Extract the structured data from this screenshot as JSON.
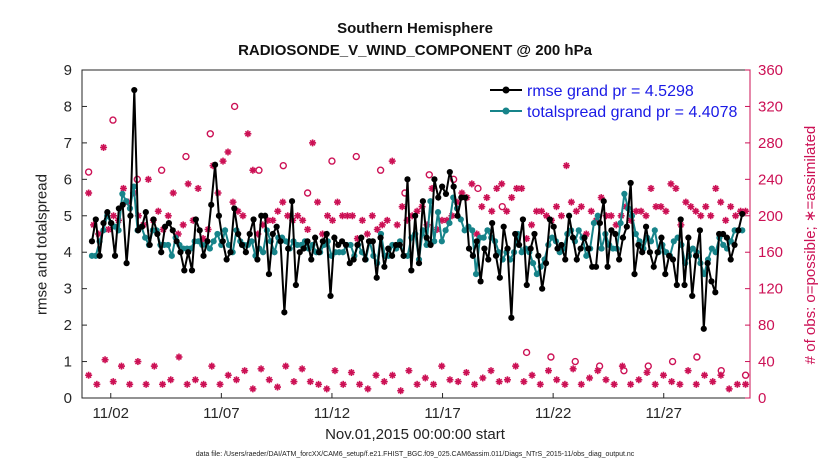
{
  "chart_data": {
    "type": "line",
    "title": "Southern Hemisphere",
    "subtitle": "RADIOSONDE_V_WIND_COMPONENT @ 200 hPa",
    "xlabel": "Nov.01,2015 00:00:00 start",
    "ylabel": "rmse and totalspread",
    "ylabel_right": "# of obs: o=possible; ∗=assimilated",
    "footer": "data file: /Users/raeder/DAI/ATM_forcXX/CAM6_setup/f.e21.FHIST_BGC.f09_025.CAM6assim.011/Diags_NTrS_2015-11/obs_diag_output.nc",
    "xlim": [
      0.7,
      30.9
    ],
    "ylim": [
      0,
      9
    ],
    "ylim_right": [
      0,
      360
    ],
    "x_ticks": [
      2,
      7,
      12,
      17,
      22,
      27
    ],
    "x_tick_labels": [
      "11/02",
      "11/07",
      "11/12",
      "11/17",
      "11/22",
      "11/27"
    ],
    "y_ticks": [
      0,
      1,
      2,
      3,
      4,
      5,
      6,
      7,
      8,
      9
    ],
    "y_ticks_right": [
      0,
      40,
      80,
      120,
      160,
      200,
      240,
      280,
      320,
      360
    ],
    "legend": [
      "rmse grand pr = 4.5298",
      "totalspread grand pr = 4.4078"
    ],
    "legend_position": "top-right",
    "series": [
      {
        "name": "rmse",
        "color": "#000000",
        "axis": "left",
        "values": [
          4.3,
          4.9,
          3.9,
          4.8,
          5.1,
          4.8,
          3.9,
          5.2,
          5.3,
          3.7,
          5.0,
          8.45,
          4.6,
          4.7,
          5.1,
          4.2,
          4.9,
          4.5,
          4.0,
          4.7,
          4.8,
          4.6,
          4.3,
          4.0,
          3.5,
          4.0,
          3.5,
          4.9,
          4.6,
          3.9,
          4.3,
          5.3,
          6.4,
          5.0,
          4.3,
          3.8,
          4.0,
          5.2,
          4.5,
          4.2,
          4.0,
          4.5,
          4.9,
          3.8,
          5.0,
          5.0,
          3.4,
          4.5,
          4.7,
          4.3,
          2.35,
          4.1,
          5.4,
          3.1,
          4.0,
          4.1,
          4.3,
          3.8,
          4.4,
          4.0,
          4.3,
          4.5,
          2.8,
          4.4,
          4.2,
          4.3,
          4.2,
          3.7,
          3.8,
          4.2,
          4.4,
          3.8,
          4.3,
          4.3,
          3.3,
          4.4,
          3.6,
          4.1,
          3.9,
          4.2,
          4.2,
          3.9,
          6.0,
          3.5,
          5.0,
          3.7,
          5.4,
          4.4,
          4.2,
          6.0,
          5.5,
          5.8,
          5.6,
          6.2,
          5.8,
          5.0,
          5.5,
          5.5,
          4.1,
          3.9,
          4.3,
          3.2,
          4.1,
          3.8,
          4.8,
          3.9,
          3.3,
          4.7,
          4.1,
          2.2,
          4.5,
          4.2,
          4.9,
          3.1,
          4.1,
          4.5,
          3.9,
          3.0,
          3.7,
          4.9,
          4.7,
          4.1,
          4.2,
          3.8,
          5.0,
          4.4,
          3.8,
          4.1,
          4.4,
          4.1,
          3.6,
          3.6,
          4.8,
          5.4,
          3.6,
          4.6,
          4.5,
          3.8,
          4.4,
          4.7,
          5.9,
          3.4,
          4.2,
          4.0,
          4.7,
          4.0,
          3.6,
          4.0,
          4.4,
          3.4,
          3.9,
          3.8,
          3.1,
          4.9,
          3.1,
          4.4,
          2.8,
          3.9,
          4.6,
          1.9,
          3.7,
          3.2,
          2.9,
          4.5,
          4.5,
          4.4,
          3.8,
          4.2,
          4.6,
          5.05
        ]
      },
      {
        "name": "totalspread",
        "color": "#17848a",
        "axis": "left",
        "values": [
          3.9,
          3.9,
          4.3,
          4.6,
          5.0,
          4.8,
          4.7,
          4.6,
          5.6,
          5.4,
          5.2,
          5.8,
          4.6,
          4.7,
          4.4,
          4.2,
          4.6,
          4.6,
          4.2,
          4.2,
          4.2,
          3.9,
          4.4,
          4.2,
          4.1,
          4.1,
          4.1,
          4.3,
          4.3,
          4.2,
          4.2,
          4.1,
          4.3,
          4.5,
          4.2,
          4.6,
          4.2,
          4.0,
          4.6,
          4.3,
          4.2,
          4.2,
          4.3,
          3.9,
          4.1,
          4.0,
          4.6,
          4.3,
          4.0,
          4.4,
          4.4,
          4.3,
          4.1,
          4.3,
          4.2,
          4.2,
          4.3,
          4.1,
          4.2,
          4.0,
          4.0,
          4.2,
          4.3,
          3.9,
          4.0,
          4.0,
          4.0,
          4.2,
          4.2,
          3.9,
          4.2,
          4.0,
          3.8,
          4.3,
          3.9,
          3.7,
          4.5,
          3.9,
          3.9,
          4.2,
          4.1,
          4.3,
          3.9,
          3.9,
          4.4,
          4.5,
          3.8,
          4.6,
          4.2,
          5.4,
          4.3,
          5.1,
          4.3,
          4.6,
          4.8,
          5.5,
          5.2,
          4.9,
          4.6,
          4.7,
          4.6,
          3.4,
          4.4,
          4.4,
          4.6,
          4.4,
          4.3,
          4.0,
          3.8,
          4.0,
          3.8,
          4.0,
          4.5,
          4.0,
          4.1,
          4.0,
          3.7,
          3.4,
          3.6,
          3.8,
          4.2,
          4.4,
          4.3,
          4.0,
          4.1,
          4.5,
          4.6,
          4.3,
          4.6,
          4.4,
          3.9,
          4.1,
          4.8,
          5.0,
          4.1,
          4.5,
          4.2,
          4.1,
          4.1,
          4.8,
          5.6,
          5.2,
          5.0,
          4.5,
          4.3,
          4.1,
          4.4,
          4.3,
          4.6,
          4.0,
          4.2,
          4.0,
          3.9,
          4.3,
          4.4,
          4.2,
          3.7,
          3.9,
          4.1,
          4.0,
          3.7,
          3.4,
          3.8,
          4.1,
          4.0,
          4.4,
          4.2,
          4.1,
          4.3,
          4.6,
          4.6,
          4.6
        ]
      },
      {
        "name": "obs assimilated (upper)",
        "color": "#cc1155",
        "axis": "right",
        "marker": "star",
        "values": [
          225,
          190,
          180,
          275,
          185,
          200,
          195,
          230,
          215,
          225,
          200,
          190,
          240,
          195,
          205,
          185,
          200,
          225,
          180,
          190,
          235,
          195,
          230,
          175,
          185,
          255,
          225,
          260,
          270,
          215,
          205,
          200,
          290,
          250,
          180,
          190,
          195,
          195,
          205,
          215,
          200,
          195,
          200,
          195,
          185,
          280,
          215,
          180,
          200,
          195,
          215,
          200,
          200,
          200,
          175,
          195,
          180,
          200,
          185,
          190,
          195,
          260,
          190,
          210,
          195,
          200,
          205,
          210,
          190,
          230,
          185,
          195,
          195,
          200,
          215,
          225,
          220,
          235,
          180,
          210,
          220,
          205,
          230,
          235,
          205,
          220,
          230,
          230,
          175,
          190,
          205,
          205,
          200,
          195,
          210,
          200,
          255,
          215,
          205,
          210,
          180,
          205,
          195,
          220,
          200,
          200,
          190,
          200,
          210,
          195,
          205,
          205,
          200,
          230,
          210,
          210,
          205,
          235,
          230,
          190,
          215,
          210,
          205,
          200,
          210,
          200,
          230,
          215,
          195,
          210,
          200,
          205,
          205
        ]
      },
      {
        "name": "obs assimilated (lower)",
        "color": "#cc1155",
        "axis": "right",
        "marker": "star",
        "values": [
          25,
          15,
          42,
          18,
          35,
          15,
          40,
          15,
          35,
          15,
          20,
          45,
          15,
          20,
          15,
          35,
          15,
          25,
          20,
          30,
          10,
          32,
          20,
          12,
          35,
          18,
          32,
          18,
          15,
          10,
          30,
          15,
          28,
          15,
          10,
          25,
          18,
          25,
          8,
          30,
          15,
          22,
          15,
          35,
          20,
          18,
          28,
          15,
          22,
          30,
          18,
          20,
          35,
          18,
          25,
          15,
          30,
          20,
          15,
          32,
          15,
          22,
          30,
          20,
          15,
          35,
          15,
          20,
          28,
          15,
          25,
          18,
          15,
          30,
          15,
          25,
          18,
          25,
          10,
          15,
          15
        ]
      },
      {
        "name": "obs possible (open circles)",
        "color": "#cc1155",
        "axis": "right",
        "marker": "circle",
        "values": [
          248,
          305,
          240,
          250,
          265,
          290,
          320,
          250,
          255,
          225,
          260,
          265,
          250,
          225,
          245,
          240,
          230,
          210,
          50,
          45,
          40,
          35,
          30,
          35,
          40,
          45,
          30,
          25
        ]
      }
    ]
  }
}
